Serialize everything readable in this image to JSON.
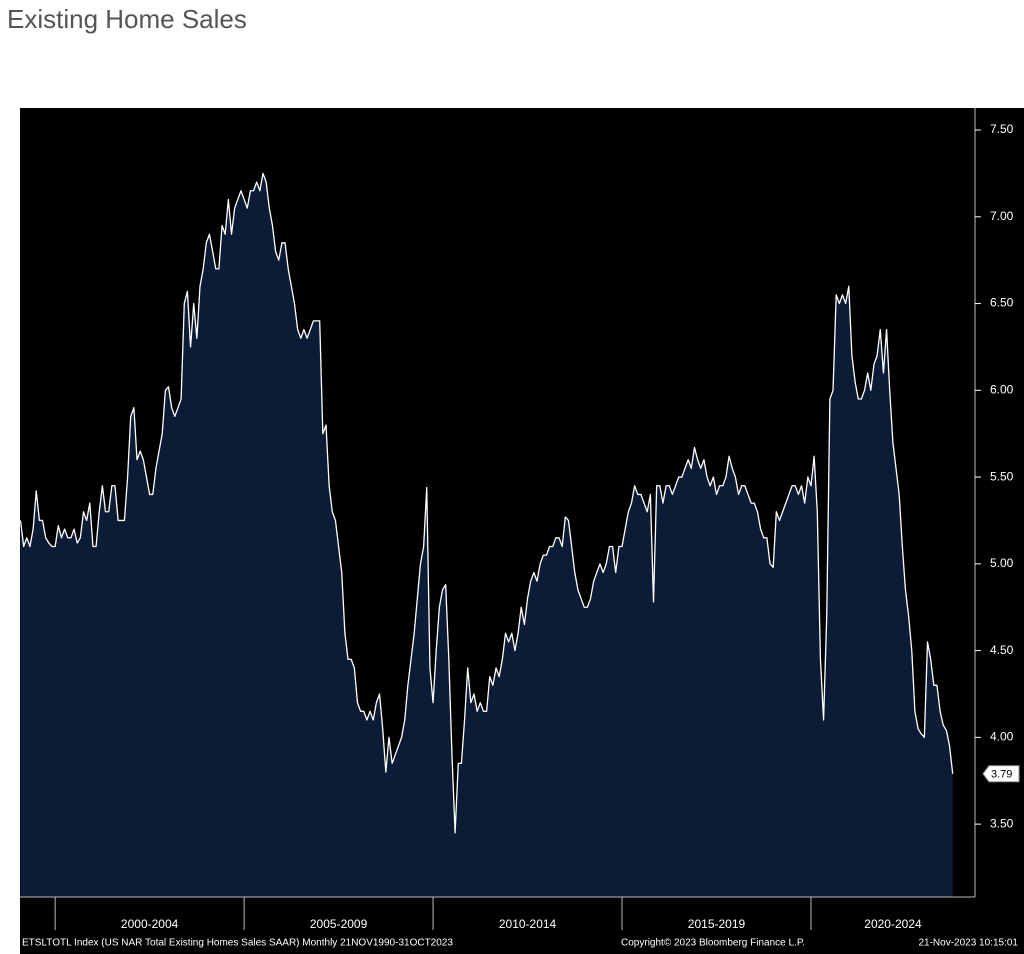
{
  "chart_data": {
    "type": "area",
    "title": "Existing Home Sales",
    "fill_color": "#0c1b36",
    "line_color": "#ffffff",
    "background": "#000000",
    "xlim": [
      1999.07,
      2024.34
    ],
    "xticks": [
      2000,
      2005,
      2010,
      2015,
      2020
    ],
    "x_period_labels": [
      {
        "label": "2000-2004",
        "from": 2000,
        "to": 2005
      },
      {
        "label": "2005-2009",
        "from": 2005,
        "to": 2010
      },
      {
        "label": "2010-2014",
        "from": 2010,
        "to": 2015
      },
      {
        "label": "2015-2019",
        "from": 2015,
        "to": 2020
      },
      {
        "label": "2020-2024",
        "from": 2020,
        "to": 2025
      }
    ],
    "ylim": [
      3.08,
      7.627
    ],
    "yticks": [
      {
        "value": 3.5,
        "label": "3.50"
      },
      {
        "value": 4,
        "label": "4.00"
      },
      {
        "value": 4.5,
        "label": "4.50"
      },
      {
        "value": 5,
        "label": "5.00"
      },
      {
        "value": 5.5,
        "label": "5.50"
      },
      {
        "value": 6,
        "label": "6.00"
      },
      {
        "value": 6.5,
        "label": "6.50"
      },
      {
        "value": 7,
        "label": "7.00"
      },
      {
        "value": 7.5,
        "label": "7.50"
      }
    ],
    "x": [
      1999.083,
      1999.167,
      1999.25,
      1999.333,
      1999.417,
      1999.5,
      1999.583,
      1999.667,
      1999.75,
      1999.833,
      1999.917,
      2000,
      2000.083,
      2000.167,
      2000.25,
      2000.333,
      2000.417,
      2000.5,
      2000.583,
      2000.667,
      2000.75,
      2000.833,
      2000.917,
      2001,
      2001.083,
      2001.167,
      2001.25,
      2001.333,
      2001.417,
      2001.5,
      2001.583,
      2001.667,
      2001.75,
      2001.833,
      2001.917,
      2002,
      2002.083,
      2002.167,
      2002.25,
      2002.333,
      2002.417,
      2002.5,
      2002.583,
      2002.667,
      2002.75,
      2002.833,
      2002.917,
      2003,
      2003.083,
      2003.167,
      2003.25,
      2003.333,
      2003.417,
      2003.5,
      2003.583,
      2003.667,
      2003.75,
      2003.833,
      2003.917,
      2004,
      2004.083,
      2004.167,
      2004.25,
      2004.333,
      2004.417,
      2004.5,
      2004.583,
      2004.667,
      2004.75,
      2004.833,
      2004.917,
      2005,
      2005.083,
      2005.167,
      2005.25,
      2005.333,
      2005.417,
      2005.5,
      2005.583,
      2005.667,
      2005.75,
      2005.833,
      2005.917,
      2006,
      2006.083,
      2006.167,
      2006.25,
      2006.333,
      2006.417,
      2006.5,
      2006.583,
      2006.667,
      2006.75,
      2006.833,
      2006.917,
      2007,
      2007.083,
      2007.167,
      2007.25,
      2007.333,
      2007.417,
      2007.5,
      2007.583,
      2007.667,
      2007.75,
      2007.833,
      2007.917,
      2008,
      2008.083,
      2008.167,
      2008.25,
      2008.333,
      2008.417,
      2008.5,
      2008.583,
      2008.667,
      2008.75,
      2008.833,
      2008.917,
      2009,
      2009.083,
      2009.167,
      2009.25,
      2009.333,
      2009.417,
      2009.5,
      2009.583,
      2009.667,
      2009.75,
      2009.833,
      2009.917,
      2010,
      2010.083,
      2010.167,
      2010.25,
      2010.333,
      2010.417,
      2010.5,
      2010.583,
      2010.667,
      2010.75,
      2010.833,
      2010.917,
      2011,
      2011.083,
      2011.167,
      2011.25,
      2011.333,
      2011.417,
      2011.5,
      2011.583,
      2011.667,
      2011.75,
      2011.833,
      2011.917,
      2012,
      2012.083,
      2012.167,
      2012.25,
      2012.333,
      2012.417,
      2012.5,
      2012.583,
      2012.667,
      2012.75,
      2012.833,
      2012.917,
      2013,
      2013.083,
      2013.167,
      2013.25,
      2013.333,
      2013.417,
      2013.5,
      2013.583,
      2013.667,
      2013.75,
      2013.833,
      2013.917,
      2014,
      2014.083,
      2014.167,
      2014.25,
      2014.333,
      2014.417,
      2014.5,
      2014.583,
      2014.667,
      2014.75,
      2014.833,
      2014.917,
      2015,
      2015.083,
      2015.167,
      2015.25,
      2015.333,
      2015.417,
      2015.5,
      2015.583,
      2015.667,
      2015.75,
      2015.833,
      2015.917,
      2016,
      2016.083,
      2016.167,
      2016.25,
      2016.333,
      2016.417,
      2016.5,
      2016.583,
      2016.667,
      2016.75,
      2016.833,
      2016.917,
      2017,
      2017.083,
      2017.167,
      2017.25,
      2017.333,
      2017.417,
      2017.5,
      2017.583,
      2017.667,
      2017.75,
      2017.833,
      2017.917,
      2018,
      2018.083,
      2018.167,
      2018.25,
      2018.333,
      2018.417,
      2018.5,
      2018.583,
      2018.667,
      2018.75,
      2018.833,
      2018.917,
      2019,
      2019.083,
      2019.167,
      2019.25,
      2019.333,
      2019.417,
      2019.5,
      2019.583,
      2019.667,
      2019.75,
      2019.833,
      2019.917,
      2020,
      2020.083,
      2020.167,
      2020.25,
      2020.333,
      2020.417,
      2020.5,
      2020.583,
      2020.667,
      2020.75,
      2020.833,
      2020.917,
      2021,
      2021.083,
      2021.167,
      2021.25,
      2021.333,
      2021.417,
      2021.5,
      2021.583,
      2021.667,
      2021.75,
      2021.833,
      2021.917,
      2022,
      2022.083,
      2022.167,
      2022.25,
      2022.333,
      2022.417,
      2022.5,
      2022.583,
      2022.667,
      2022.75,
      2022.833,
      2022.917,
      2023,
      2023.083,
      2023.167,
      2023.25,
      2023.333,
      2023.417,
      2023.5,
      2023.583,
      2023.667,
      2023.75
    ],
    "values": [
      5.25,
      5.1,
      5.15,
      5.1,
      5.2,
      5.42,
      5.25,
      5.25,
      5.15,
      5.12,
      5.1,
      5.1,
      5.22,
      5.15,
      5.2,
      5.15,
      5.15,
      5.2,
      5.12,
      5.15,
      5.3,
      5.25,
      5.35,
      5.1,
      5.1,
      5.3,
      5.45,
      5.3,
      5.3,
      5.45,
      5.45,
      5.25,
      5.25,
      5.25,
      5.5,
      5.85,
      5.9,
      5.6,
      5.65,
      5.6,
      5.5,
      5.4,
      5.4,
      5.55,
      5.65,
      5.75,
      6.0,
      6.02,
      5.9,
      5.85,
      5.9,
      5.95,
      6.5,
      6.57,
      6.25,
      6.5,
      6.3,
      6.6,
      6.7,
      6.85,
      6.9,
      6.8,
      6.7,
      6.7,
      6.95,
      6.9,
      7.1,
      6.9,
      7.05,
      7.1,
      7.15,
      7.1,
      7.05,
      7.15,
      7.15,
      7.2,
      7.15,
      7.25,
      7.2,
      7.05,
      6.95,
      6.8,
      6.75,
      6.85,
      6.85,
      6.7,
      6.6,
      6.5,
      6.35,
      6.3,
      6.35,
      6.3,
      6.35,
      6.4,
      6.4,
      6.4,
      5.75,
      5.8,
      5.45,
      5.3,
      5.25,
      5.1,
      4.95,
      4.6,
      4.45,
      4.45,
      4.4,
      4.2,
      4.15,
      4.15,
      4.1,
      4.15,
      4.1,
      4.2,
      4.25,
      4.05,
      3.8,
      4.0,
      3.85,
      3.9,
      3.95,
      4.0,
      4.1,
      4.3,
      4.45,
      4.6,
      4.8,
      5.0,
      5.1,
      5.44,
      4.4,
      4.2,
      4.5,
      4.75,
      4.85,
      4.88,
      4.45,
      3.9,
      3.45,
      3.85,
      3.85,
      4.1,
      4.4,
      4.2,
      4.25,
      4.15,
      4.2,
      4.15,
      4.15,
      4.35,
      4.3,
      4.4,
      4.35,
      4.45,
      4.6,
      4.55,
      4.6,
      4.5,
      4.6,
      4.75,
      4.65,
      4.8,
      4.9,
      4.95,
      4.9,
      5.0,
      5.05,
      5.05,
      5.1,
      5.1,
      5.15,
      5.15,
      5.1,
      5.27,
      5.25,
      5.1,
      4.95,
      4.85,
      4.8,
      4.75,
      4.75,
      4.8,
      4.9,
      4.95,
      5.0,
      4.95,
      5.0,
      5.1,
      5.1,
      4.95,
      5.1,
      5.1,
      5.2,
      5.3,
      5.35,
      5.45,
      5.4,
      5.4,
      5.35,
      5.3,
      5.4,
      4.78,
      5.45,
      5.45,
      5.35,
      5.45,
      5.45,
      5.4,
      5.45,
      5.5,
      5.5,
      5.55,
      5.6,
      5.55,
      5.67,
      5.6,
      5.55,
      5.6,
      5.5,
      5.45,
      5.5,
      5.4,
      5.45,
      5.45,
      5.5,
      5.62,
      5.55,
      5.5,
      5.4,
      5.45,
      5.45,
      5.4,
      5.35,
      5.35,
      5.3,
      5.2,
      5.15,
      5.15,
      5.0,
      4.98,
      5.3,
      5.25,
      5.3,
      5.35,
      5.4,
      5.45,
      5.45,
      5.4,
      5.45,
      5.35,
      5.5,
      5.45,
      5.62,
      5.3,
      4.45,
      4.1,
      4.7,
      5.95,
      6.0,
      6.55,
      6.5,
      6.55,
      6.5,
      6.6,
      6.2,
      6.05,
      5.95,
      5.95,
      6.0,
      6.1,
      6.0,
      6.15,
      6.2,
      6.35,
      6.1,
      6.35,
      6.0,
      5.7,
      5.55,
      5.4,
      5.1,
      4.85,
      4.7,
      4.5,
      4.15,
      4.05,
      4.02,
      4.0,
      4.55,
      4.45,
      4.3,
      4.3,
      4.15,
      4.07,
      4.04,
      3.95,
      3.79
    ],
    "footer": {
      "left": "ETSLTOTL Index (US NAR Total Existing Homes Sales SAAR)  Monthly 21NOV1990-31OCT2023",
      "center": "Copyright© 2023 Bloomberg Finance L.P.",
      "right": "21-Nov-2023 10:15:01"
    }
  }
}
